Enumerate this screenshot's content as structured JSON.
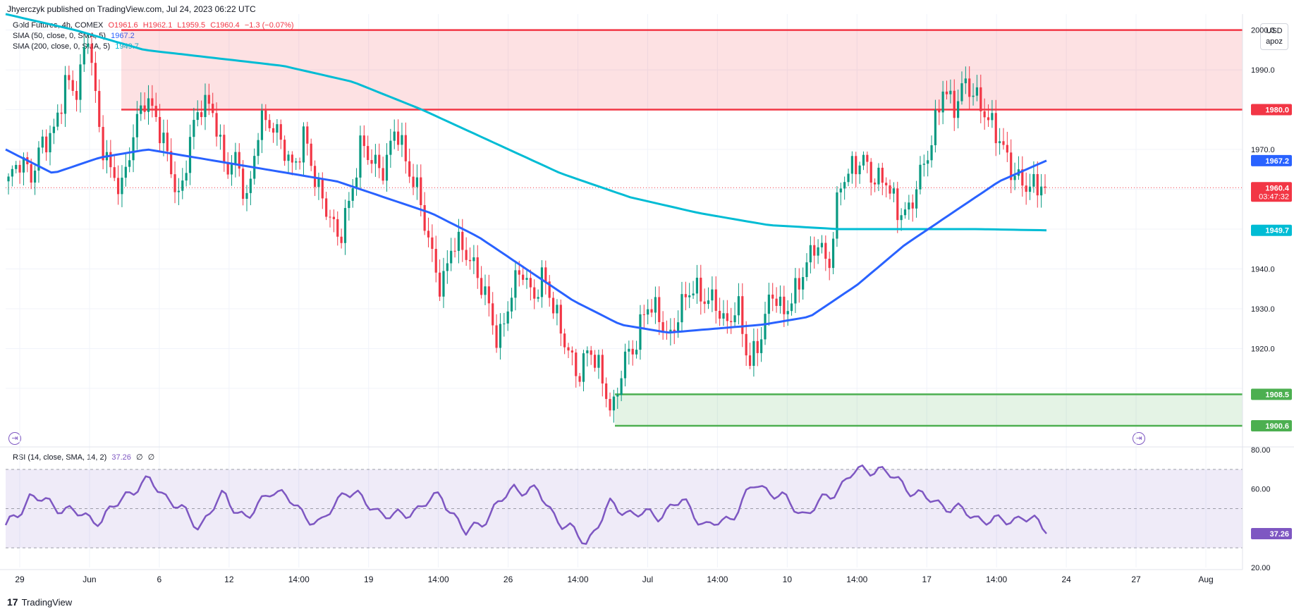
{
  "header": {
    "published": "Jhyerczyk published on TradingView.com, Jul 24, 2023 06:22 UTC"
  },
  "legend": {
    "symbol": "Gold Futures, 4h, COMEX",
    "open": "O1961.6",
    "high": "H1962.1",
    "low": "L1959.5",
    "close": "C1960.4",
    "change": "−1.3 (−0.07%)",
    "sma50_label": "SMA (50, close, 0, SMA, 5)",
    "sma50_value": "1967.2",
    "sma200_label": "SMA (200, close, 0, SMA, 5)",
    "sma200_value": "1949.7",
    "rsi_label": "RSI (14, close, SMA, 14, 2)",
    "rsi_value": "37.26",
    "rsi_extra1": "∅",
    "rsi_extra2": "∅"
  },
  "currency": {
    "line1": "USD",
    "line2": "apoz"
  },
  "footer": {
    "logo_text": "TradingView"
  },
  "colors": {
    "up": "#089981",
    "down": "#f23645",
    "sma50": "#2962ff",
    "sma200": "#00bcd4",
    "rsi": "#7e57c2",
    "resistance": "#f23645",
    "support": "#4caf50"
  },
  "chart_data": {
    "type": "candlestick",
    "price_axis": {
      "ylim": [
        1896,
        2004
      ],
      "ticks": [
        "1910.0",
        "1920.0",
        "1930.0",
        "1940.0",
        "1950.0",
        "1960.0",
        "1970.0",
        "1980.0",
        "1990.0",
        "2000.0"
      ]
    },
    "rsi_axis": {
      "ylim": [
        20,
        80
      ],
      "ticks": [
        "20.00",
        "40.00",
        "60.00",
        "80.00"
      ],
      "levels": [
        30,
        50,
        70
      ]
    },
    "time_labels": [
      "29",
      "Jun",
      "6",
      "12",
      "14:00",
      "19",
      "14:00",
      "26",
      "14:00",
      "Jul",
      "14:00",
      "10",
      "14:00",
      "17",
      "14:00",
      "24",
      "27",
      "Aug"
    ],
    "price_badges": [
      {
        "value": "1980.0",
        "color": "#f23645"
      },
      {
        "value": "1967.2",
        "color": "#2962ff"
      },
      {
        "value": "1960.4",
        "sub": "03:47:32",
        "color": "#f23645"
      },
      {
        "value": "1949.7",
        "color": "#00bcd4"
      },
      {
        "value": "1908.5",
        "color": "#4caf50"
      },
      {
        "value": "1900.6",
        "color": "#4caf50"
      }
    ],
    "rsi_badge": {
      "value": "37.26",
      "color": "#7e57c2"
    },
    "zones": [
      {
        "name": "resistance",
        "top": 2000,
        "bottom": 1980.0
      },
      {
        "name": "support",
        "top": 1908.5,
        "bottom": 1900.6
      }
    ],
    "last_price": 1960.4,
    "close_path": [
      1962,
      1966,
      1962,
      1972,
      1976,
      1988,
      1984,
      1998,
      1973,
      1965,
      1962,
      1975,
      1982,
      1976,
      1968,
      1958,
      1975,
      1982,
      1978,
      1964,
      1968,
      1958,
      1978,
      1976,
      1970,
      1964,
      1975,
      1963,
      1955,
      1946,
      1956,
      1972,
      1968,
      1966,
      1976,
      1964,
      1958,
      1946,
      1936,
      1948,
      1944,
      1938,
      1932,
      1922,
      1934,
      1941,
      1931,
      1937,
      1929,
      1922,
      1914,
      1920,
      1912,
      1902,
      1918,
      1922,
      1932,
      1928,
      1920,
      1930,
      1937,
      1934,
      1932,
      1924,
      1930,
      1916,
      1924,
      1936,
      1928,
      1932,
      1940,
      1948,
      1942,
      1962,
      1964,
      1966,
      1962,
      1964,
      1956,
      1954,
      1962,
      1970,
      1986,
      1982,
      1988,
      1982,
      1976,
      1972,
      1966,
      1963,
      1961,
      1960.4
    ],
    "sma50_path": [
      1970,
      1964,
      1968,
      1970,
      1968,
      1966,
      1964,
      1962,
      1958,
      1954,
      1948,
      1940,
      1932,
      1926,
      1924,
      1925,
      1926,
      1928,
      1936,
      1946,
      1954,
      1962,
      1967.2
    ],
    "sma200_path": [
      2004,
      2000,
      1995,
      1993,
      1991,
      1987,
      1980,
      1972,
      1964,
      1958,
      1954,
      1951,
      1950,
      1950,
      1950,
      1949.7
    ],
    "rsi_path": [
      40,
      56,
      52,
      47,
      44,
      58,
      64,
      52,
      41,
      57,
      44,
      61,
      51,
      41,
      60,
      52,
      45,
      50,
      57,
      37,
      47,
      61,
      58,
      42,
      33,
      52,
      47,
      47,
      54,
      40,
      46,
      63,
      56,
      47,
      56,
      68,
      71,
      63,
      55,
      51,
      46,
      43,
      46,
      40
    ]
  }
}
